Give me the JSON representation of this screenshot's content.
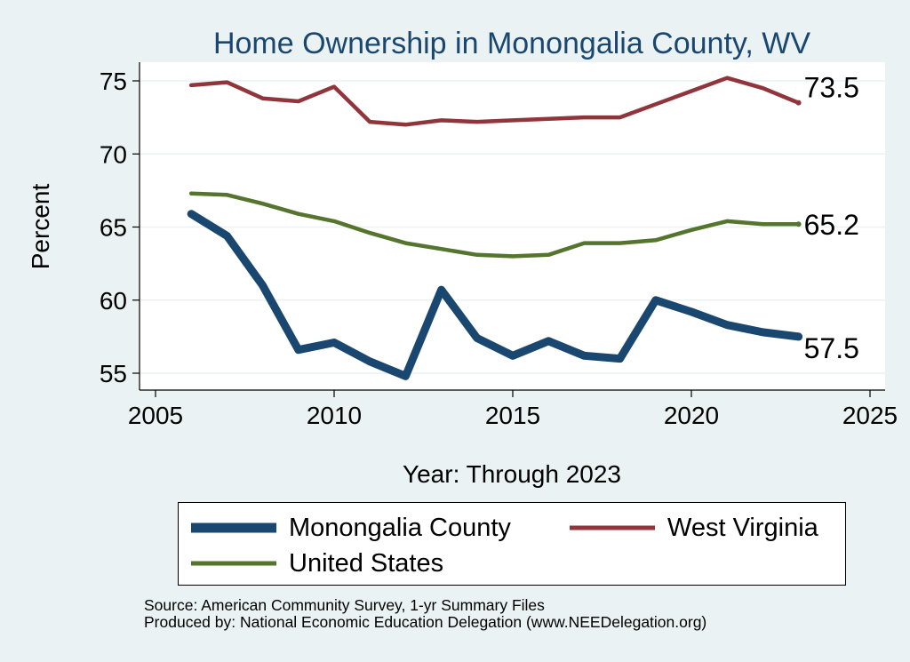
{
  "chart_data": {
    "type": "line",
    "title": "Home Ownership in Monongalia County, WV",
    "xlabel": "Year: Through 2023",
    "ylabel": "Percent",
    "xlim": [
      2005,
      2025
    ],
    "ylim": [
      54.5,
      76
    ],
    "xticks": [
      "2005",
      "2010",
      "2015",
      "2020",
      "2025"
    ],
    "xtick_values": [
      2005,
      2010,
      2015,
      2020,
      2025
    ],
    "yticks": [
      "55",
      "60",
      "65",
      "70",
      "75"
    ],
    "ytick_values": [
      55,
      60,
      65,
      70,
      75
    ],
    "grid": true,
    "x": [
      2006,
      2007,
      2008,
      2009,
      2010,
      2011,
      2012,
      2013,
      2014,
      2015,
      2016,
      2017,
      2018,
      2019,
      2020,
      2021,
      2022,
      2023
    ],
    "series": [
      {
        "name": "Monongalia County",
        "color": "#1A476F",
        "values": [
          65.9,
          64.4,
          61.0,
          56.6,
          57.1,
          55.8,
          54.8,
          60.7,
          57.4,
          56.2,
          57.2,
          56.2,
          56.0,
          60.0,
          59.2,
          58.3,
          57.8,
          57.5
        ],
        "end_label": "57.5"
      },
      {
        "name": "West Virginia",
        "color": "#90353B",
        "values": [
          74.7,
          74.9,
          73.8,
          73.6,
          74.6,
          72.2,
          72.0,
          72.3,
          72.2,
          72.3,
          72.4,
          72.5,
          72.5,
          73.4,
          74.3,
          75.2,
          74.5,
          73.5
        ],
        "end_label": "73.5"
      },
      {
        "name": "United States",
        "color": "#55752F",
        "values": [
          67.3,
          67.2,
          66.6,
          65.9,
          65.4,
          64.6,
          63.9,
          63.5,
          63.1,
          63.0,
          63.1,
          63.9,
          63.9,
          64.1,
          64.8,
          65.4,
          65.2,
          65.2
        ],
        "end_label": "65.2"
      }
    ],
    "legend": {
      "position": "bottom",
      "entries": [
        "Monongalia County",
        "West Virginia",
        "United States"
      ]
    }
  },
  "notes": {
    "source": "Source: American Community Survey, 1-yr Summary Files",
    "produced_by": "Produced by: National Economic Education Delegation (www.NEEDelegation.org)"
  },
  "colors": {
    "background": "#EAF2F3",
    "plot_background": "#FFFFFF",
    "title": "#1A476F",
    "grid": "#EAF2F3"
  }
}
